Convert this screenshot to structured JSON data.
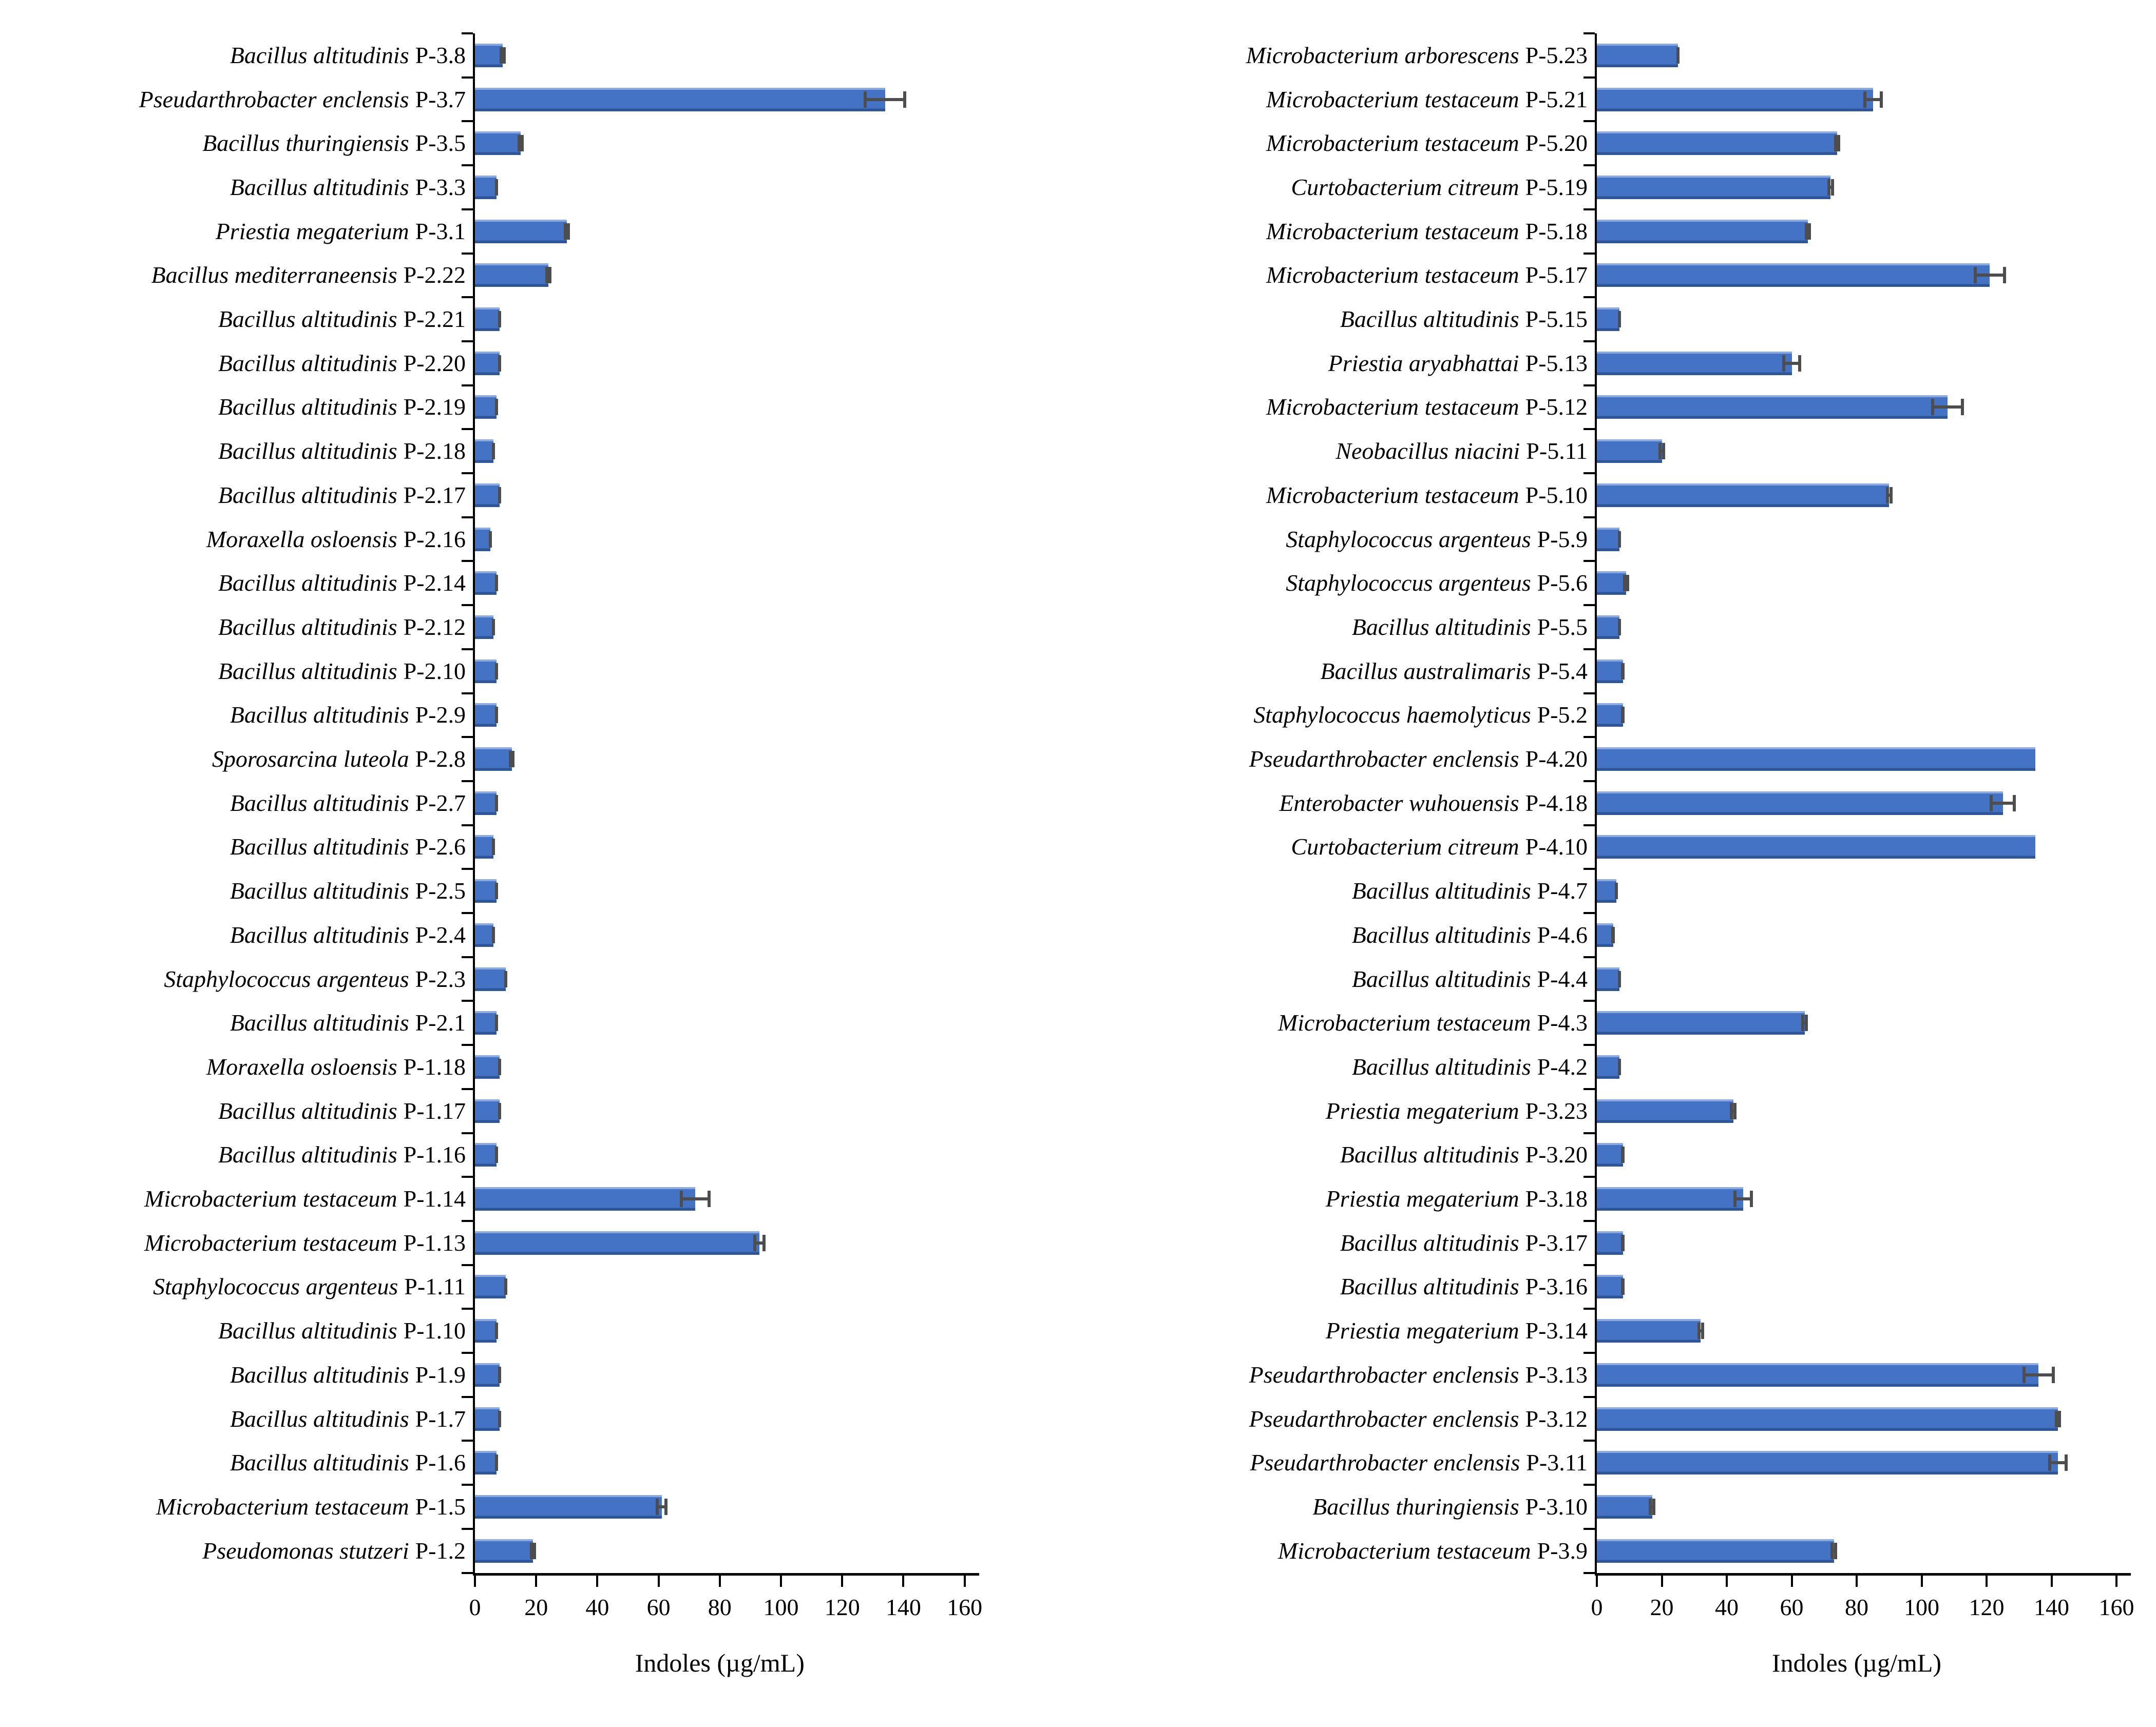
{
  "styles": {
    "bar_fill": "#4472C4",
    "bar_top_edge": "#8EA9DB",
    "bar_bottom_edge": "#2F5597",
    "error_bar_color": "#4D4D4D",
    "axis_color": "#000000",
    "background": "#FFFFFF",
    "text_color": "#000000"
  },
  "chart_data": [
    {
      "id": "left",
      "type": "bar",
      "orientation": "horizontal",
      "title": "",
      "xlabel": "Indoles (µg/mL)",
      "ylabel": "",
      "xlim": [
        0,
        160
      ],
      "xticks": [
        0,
        20,
        40,
        60,
        80,
        100,
        120,
        140,
        160
      ],
      "grid": false,
      "legend": "none",
      "items": [
        {
          "species": "Bacillus altitudinis",
          "code": "P-3.8",
          "value": 9,
          "err": 1
        },
        {
          "species": "Pseudarthrobacter enclensis",
          "code": "P-3.7",
          "value": 134,
          "err": 7
        },
        {
          "species": "Bacillus thuringiensis",
          "code": "P-3.5",
          "value": 15,
          "err": 1
        },
        {
          "species": "Bacillus altitudinis",
          "code": "P-3.3",
          "value": 7,
          "err": 0.5
        },
        {
          "species": "Priestia megaterium",
          "code": "P-3.1",
          "value": 30,
          "err": 1
        },
        {
          "species": "Bacillus mediterraneensis",
          "code": "P-2.22",
          "value": 24,
          "err": 1
        },
        {
          "species": "Bacillus altitudinis",
          "code": "P-2.21",
          "value": 8,
          "err": 0.5
        },
        {
          "species": "Bacillus altitudinis",
          "code": "P-2.20",
          "value": 8,
          "err": 0.5
        },
        {
          "species": "Bacillus altitudinis",
          "code": "P-2.19",
          "value": 7,
          "err": 0.5
        },
        {
          "species": "Bacillus altitudinis",
          "code": "P-2.18",
          "value": 6,
          "err": 0.5
        },
        {
          "species": "Bacillus altitudinis",
          "code": "P-2.17",
          "value": 8,
          "err": 0.5
        },
        {
          "species": "Moraxella osloensis",
          "code": "P-2.16",
          "value": 5,
          "err": 0.5
        },
        {
          "species": "Bacillus altitudinis",
          "code": "P-2.14",
          "value": 7,
          "err": 0.5
        },
        {
          "species": "Bacillus altitudinis",
          "code": "P-2.12",
          "value": 6,
          "err": 0.5
        },
        {
          "species": "Bacillus altitudinis",
          "code": "P-2.10",
          "value": 7,
          "err": 0.5
        },
        {
          "species": "Bacillus altitudinis",
          "code": "P-2.9",
          "value": 7,
          "err": 0.5
        },
        {
          "species": "Sporosarcina luteola",
          "code": "P-2.8",
          "value": 12,
          "err": 1
        },
        {
          "species": "Bacillus altitudinis",
          "code": "P-2.7",
          "value": 7,
          "err": 0.5
        },
        {
          "species": "Bacillus altitudinis",
          "code": "P-2.6",
          "value": 6,
          "err": 0.5
        },
        {
          "species": "Bacillus altitudinis",
          "code": "P-2.5",
          "value": 7,
          "err": 0.5
        },
        {
          "species": "Bacillus altitudinis",
          "code": "P-2.4",
          "value": 6,
          "err": 0.5
        },
        {
          "species": "Staphylococcus argenteus",
          "code": "P-2.3",
          "value": 10,
          "err": 0.5
        },
        {
          "species": "Bacillus altitudinis",
          "code": "P-2.1",
          "value": 7,
          "err": 0.5
        },
        {
          "species": "Moraxella osloensis",
          "code": "P-1.18",
          "value": 8,
          "err": 0.5
        },
        {
          "species": "Bacillus altitudinis",
          "code": "P-1.17",
          "value": 8,
          "err": 0.5
        },
        {
          "species": "Bacillus altitudinis",
          "code": "P-1.16",
          "value": 7,
          "err": 0.5
        },
        {
          "species": "Microbacterium testaceum",
          "code": "P-1.14",
          "value": 72,
          "err": 5
        },
        {
          "species": "Microbacterium testaceum",
          "code": "P-1.13",
          "value": 93,
          "err": 2
        },
        {
          "species": "Staphylococcus argenteus",
          "code": "P-1.11",
          "value": 10,
          "err": 0.5
        },
        {
          "species": "Bacillus altitudinis",
          "code": "P-1.10",
          "value": 7,
          "err": 0.5
        },
        {
          "species": "Bacillus altitudinis",
          "code": "P-1.9",
          "value": 8,
          "err": 0.5
        },
        {
          "species": "Bacillus altitudinis",
          "code": "P-1.7",
          "value": 8,
          "err": 0.5
        },
        {
          "species": "Bacillus altitudinis",
          "code": "P-1.6",
          "value": 7,
          "err": 0.5
        },
        {
          "species": "Microbacterium testaceum",
          "code": "P-1.5",
          "value": 61,
          "err": 2
        },
        {
          "species": "Pseudomonas stutzeri",
          "code": "P-1.2",
          "value": 19,
          "err": 1
        }
      ]
    },
    {
      "id": "right",
      "type": "bar",
      "orientation": "horizontal",
      "title": "",
      "xlabel": "Indoles (µg/mL)",
      "ylabel": "",
      "xlim": [
        0,
        160
      ],
      "xticks": [
        0,
        20,
        40,
        60,
        80,
        100,
        120,
        140,
        160
      ],
      "grid": false,
      "legend": "none",
      "items": [
        {
          "species": "Microbacterium arborescens",
          "code": "P-5.23",
          "value": 25,
          "err": 0.5
        },
        {
          "species": "Microbacterium testaceum",
          "code": "P-5.21",
          "value": 85,
          "err": 3
        },
        {
          "species": "Microbacterium testaceum",
          "code": "P-5.20",
          "value": 74,
          "err": 1
        },
        {
          "species": "Curtobacterium citreum",
          "code": "P-5.19",
          "value": 72,
          "err": 1
        },
        {
          "species": "Microbacterium testaceum",
          "code": "P-5.18",
          "value": 65,
          "err": 1
        },
        {
          "species": "Microbacterium testaceum",
          "code": "P-5.17",
          "value": 121,
          "err": 5
        },
        {
          "species": "Bacillus altitudinis",
          "code": "P-5.15",
          "value": 7,
          "err": 0.5
        },
        {
          "species": "Priestia aryabhattai",
          "code": "P-5.13",
          "value": 60,
          "err": 3
        },
        {
          "species": "Microbacterium testaceum",
          "code": "P-5.12",
          "value": 108,
          "err": 5
        },
        {
          "species": "Neobacillus niacini",
          "code": "P-5.11",
          "value": 20,
          "err": 1
        },
        {
          "species": "Microbacterium testaceum",
          "code": "P-5.10",
          "value": 90,
          "err": 1
        },
        {
          "species": "Staphylococcus argenteus",
          "code": "P-5.9",
          "value": 7,
          "err": 0.5
        },
        {
          "species": "Staphylococcus argenteus",
          "code": "P-5.6",
          "value": 9,
          "err": 1
        },
        {
          "species": "Bacillus altitudinis",
          "code": "P-5.5",
          "value": 7,
          "err": 0.5
        },
        {
          "species": "Bacillus australimaris",
          "code": "P-5.4",
          "value": 8,
          "err": 0.5
        },
        {
          "species": "Staphylococcus haemolyticus",
          "code": "P-5.2",
          "value": 8,
          "err": 0.5
        },
        {
          "species": "Pseudarthrobacter enclensis",
          "code": "P-4.20",
          "value": 135,
          "err": 0
        },
        {
          "species": "Enterobacter wuhouensis",
          "code": "P-4.18",
          "value": 125,
          "err": 4
        },
        {
          "species": "Curtobacterium citreum",
          "code": "P-4.10",
          "value": 135,
          "err": 0
        },
        {
          "species": "Bacillus altitudinis",
          "code": "P-4.7",
          "value": 6,
          "err": 0.5
        },
        {
          "species": "Bacillus altitudinis",
          "code": "P-4.6",
          "value": 5,
          "err": 0.5
        },
        {
          "species": "Bacillus altitudinis",
          "code": "P-4.4",
          "value": 7,
          "err": 0.5
        },
        {
          "species": "Microbacterium testaceum",
          "code": "P-4.3",
          "value": 64,
          "err": 1
        },
        {
          "species": "Bacillus altitudinis",
          "code": "P-4.2",
          "value": 7,
          "err": 0.5
        },
        {
          "species": "Priestia megaterium",
          "code": "P-3.23",
          "value": 42,
          "err": 1
        },
        {
          "species": "Bacillus altitudinis",
          "code": "P-3.20",
          "value": 8,
          "err": 0.5
        },
        {
          "species": "Priestia megaterium",
          "code": "P-3.18",
          "value": 45,
          "err": 3
        },
        {
          "species": "Bacillus altitudinis",
          "code": "P-3.17",
          "value": 8,
          "err": 0.5
        },
        {
          "species": "Bacillus altitudinis",
          "code": "P-3.16",
          "value": 8,
          "err": 0.5
        },
        {
          "species": "Priestia megaterium",
          "code": "P-3.14",
          "value": 32,
          "err": 1
        },
        {
          "species": "Pseudarthrobacter enclensis",
          "code": "P-3.13",
          "value": 136,
          "err": 5
        },
        {
          "species": "Pseudarthrobacter enclensis",
          "code": "P-3.12",
          "value": 142,
          "err": 1
        },
        {
          "species": "Pseudarthrobacter enclensis",
          "code": "P-3.11",
          "value": 142,
          "err": 3
        },
        {
          "species": "Bacillus thuringiensis",
          "code": "P-3.10",
          "value": 17,
          "err": 1
        },
        {
          "species": "Microbacterium testaceum",
          "code": "P-3.9",
          "value": 73,
          "err": 1
        }
      ]
    }
  ]
}
